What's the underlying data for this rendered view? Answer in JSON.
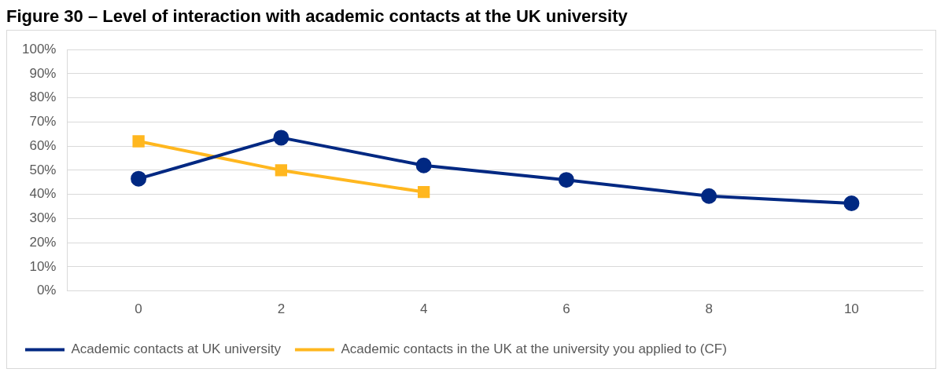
{
  "chart_data": {
    "type": "line",
    "title": "Figure 30 – Level of interaction with academic contacts at the UK university",
    "categories": [
      "0",
      "2",
      "4",
      "6",
      "8",
      "10"
    ],
    "series": [
      {
        "name": "Academic contacts at UK university",
        "color": "#002882",
        "marker": "circle",
        "values": [
          46.5,
          63.5,
          52,
          46,
          39.3,
          36.3
        ]
      },
      {
        "name": "Academic contacts in the UK at the university you applied to (CF)",
        "color": "#ffb71f",
        "marker": "square",
        "values": [
          62,
          50,
          41,
          null,
          null,
          null
        ]
      }
    ],
    "ylim": [
      0,
      100
    ],
    "yticks": [
      {
        "value": 0,
        "label": "0%"
      },
      {
        "value": 10,
        "label": "10%"
      },
      {
        "value": 20,
        "label": "20%"
      },
      {
        "value": 30,
        "label": "30%"
      },
      {
        "value": 40,
        "label": "40%"
      },
      {
        "value": 50,
        "label": "50%"
      },
      {
        "value": 60,
        "label": "60%"
      },
      {
        "value": 70,
        "label": "70%"
      },
      {
        "value": 80,
        "label": "80%"
      },
      {
        "value": 90,
        "label": "90%"
      },
      {
        "value": 100,
        "label": "100%"
      }
    ],
    "grid": "y",
    "legend": "bottom"
  }
}
